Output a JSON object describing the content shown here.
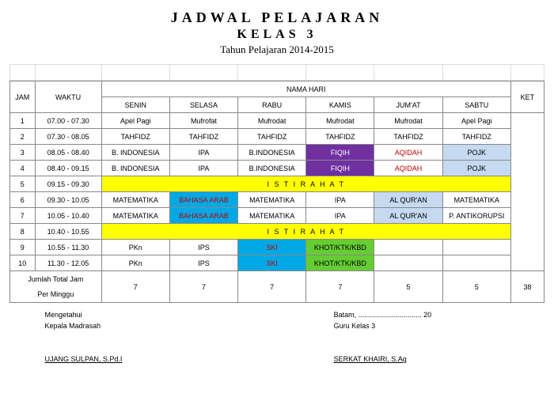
{
  "header": {
    "title1": "JADWAL PELAJARAN",
    "title2": "KELAS 3",
    "title3": "Tahun Pelajaran 2014-2015"
  },
  "columns": {
    "jam": "JAM",
    "waktu": "WAKTU",
    "nama_hari": "NAMA HARI",
    "ket": "KET",
    "days": [
      "SENIN",
      "SELASA",
      "RABU",
      "KAMIS",
      "JUM'AT",
      "SABTU"
    ]
  },
  "break_label": "I S T I R A H A T",
  "colors": {
    "yellow": "#ffff00",
    "purple": "#7030a0",
    "blue": "#00a9e6",
    "lightblue": "#c5d9f1",
    "green": "#66cc33",
    "red_text": "#c00000",
    "purple_text": "#ffffff"
  },
  "rows": [
    {
      "jam": "1",
      "waktu": "07.00 - 07.30",
      "cells": [
        {
          "t": "Apel Pagi"
        },
        {
          "t": "Mufrofat"
        },
        {
          "t": "Mufrodat"
        },
        {
          "t": "Mufrodat"
        },
        {
          "t": "Mufrodat"
        },
        {
          "t": "Apel Pagi"
        }
      ]
    },
    {
      "jam": "2",
      "waktu": "07.30 - 08.05",
      "cells": [
        {
          "t": "TAHFIDZ"
        },
        {
          "t": "TAHFIDZ"
        },
        {
          "t": "TAHFIDZ"
        },
        {
          "t": "TAHFIDZ"
        },
        {
          "t": "TAHFIDZ"
        },
        {
          "t": "TAHFIDZ"
        }
      ]
    },
    {
      "jam": "3",
      "waktu": "08.05 - 08.40",
      "cells": [
        {
          "t": "B. INDONESIA"
        },
        {
          "t": "IPA"
        },
        {
          "t": "B.INDONESIA"
        },
        {
          "t": "FIQIH",
          "bg": "#7030a0",
          "fg": "#ffffff"
        },
        {
          "t": "AQIDAH",
          "fg": "#c00000"
        },
        {
          "t": "POJK",
          "bg": "#c5d9f1"
        }
      ]
    },
    {
      "jam": "4",
      "waktu": "08.40 - 09.15",
      "cells": [
        {
          "t": "B. INDONESIA"
        },
        {
          "t": "IPA"
        },
        {
          "t": "B.INDONESIA"
        },
        {
          "t": "FIQIH",
          "bg": "#7030a0",
          "fg": "#ffffff"
        },
        {
          "t": "AQIDAH",
          "fg": "#c00000"
        },
        {
          "t": "POJK",
          "bg": "#c5d9f1"
        }
      ]
    },
    {
      "jam": "5",
      "waktu": "09.15 - 09.30",
      "break": true
    },
    {
      "jam": "6",
      "waktu": "09.30 - 10.05",
      "cells": [
        {
          "t": "MATEMATIKA"
        },
        {
          "t": "BAHASA ARAB",
          "bg": "#00a9e6",
          "fg": "#c00000"
        },
        {
          "t": "MATEMATIKA"
        },
        {
          "t": "IPA"
        },
        {
          "t": "AL QUR'AN",
          "bg": "#c5d9f1"
        },
        {
          "t": "MATEMATIKA"
        }
      ]
    },
    {
      "jam": "7",
      "waktu": "10.05 - 10.40",
      "cells": [
        {
          "t": "MATEMATIKA"
        },
        {
          "t": "BAHASA ARAB",
          "bg": "#00a9e6",
          "fg": "#c00000"
        },
        {
          "t": "MATEMATIKA"
        },
        {
          "t": "IPA"
        },
        {
          "t": "AL QUR'AN",
          "bg": "#c5d9f1"
        },
        {
          "t": "P. ANTIKORUPSI"
        }
      ]
    },
    {
      "jam": "8",
      "waktu": "10.40 - 10.55",
      "break": true
    },
    {
      "jam": "9",
      "waktu": "10.55 - 11.30",
      "cells": [
        {
          "t": "PKn"
        },
        {
          "t": "IPS"
        },
        {
          "t": "SKI",
          "bg": "#00a9e6",
          "fg": "#c00000"
        },
        {
          "t": "KHOT/KTK/KBD",
          "bg": "#66cc33"
        },
        {
          "t": ""
        },
        {
          "t": ""
        }
      ]
    },
    {
      "jam": "10",
      "waktu": "11.30 - 12.05",
      "cells": [
        {
          "t": "PKn"
        },
        {
          "t": "IPS"
        },
        {
          "t": "SKI",
          "bg": "#00a9e6",
          "fg": "#c00000"
        },
        {
          "t": "KHOT/KTK/KBD",
          "bg": "#66cc33"
        },
        {
          "t": ""
        },
        {
          "t": ""
        }
      ]
    }
  ],
  "totals": {
    "label1": "Jumlah Total Jam",
    "label2": "Per Minggu",
    "values": [
      "7",
      "7",
      "7",
      "7",
      "5",
      "5"
    ],
    "ket": "38"
  },
  "signatures": {
    "left1": "Mengetahui",
    "left2": "Kepala Madrasah",
    "left_name": "UJANG SULPAN, S.Pd.I",
    "right1": "Batam, ................................ 20",
    "right2": "Guru Kelas 3",
    "right_name": "SERKAT KHAIRI, S.Ag"
  }
}
